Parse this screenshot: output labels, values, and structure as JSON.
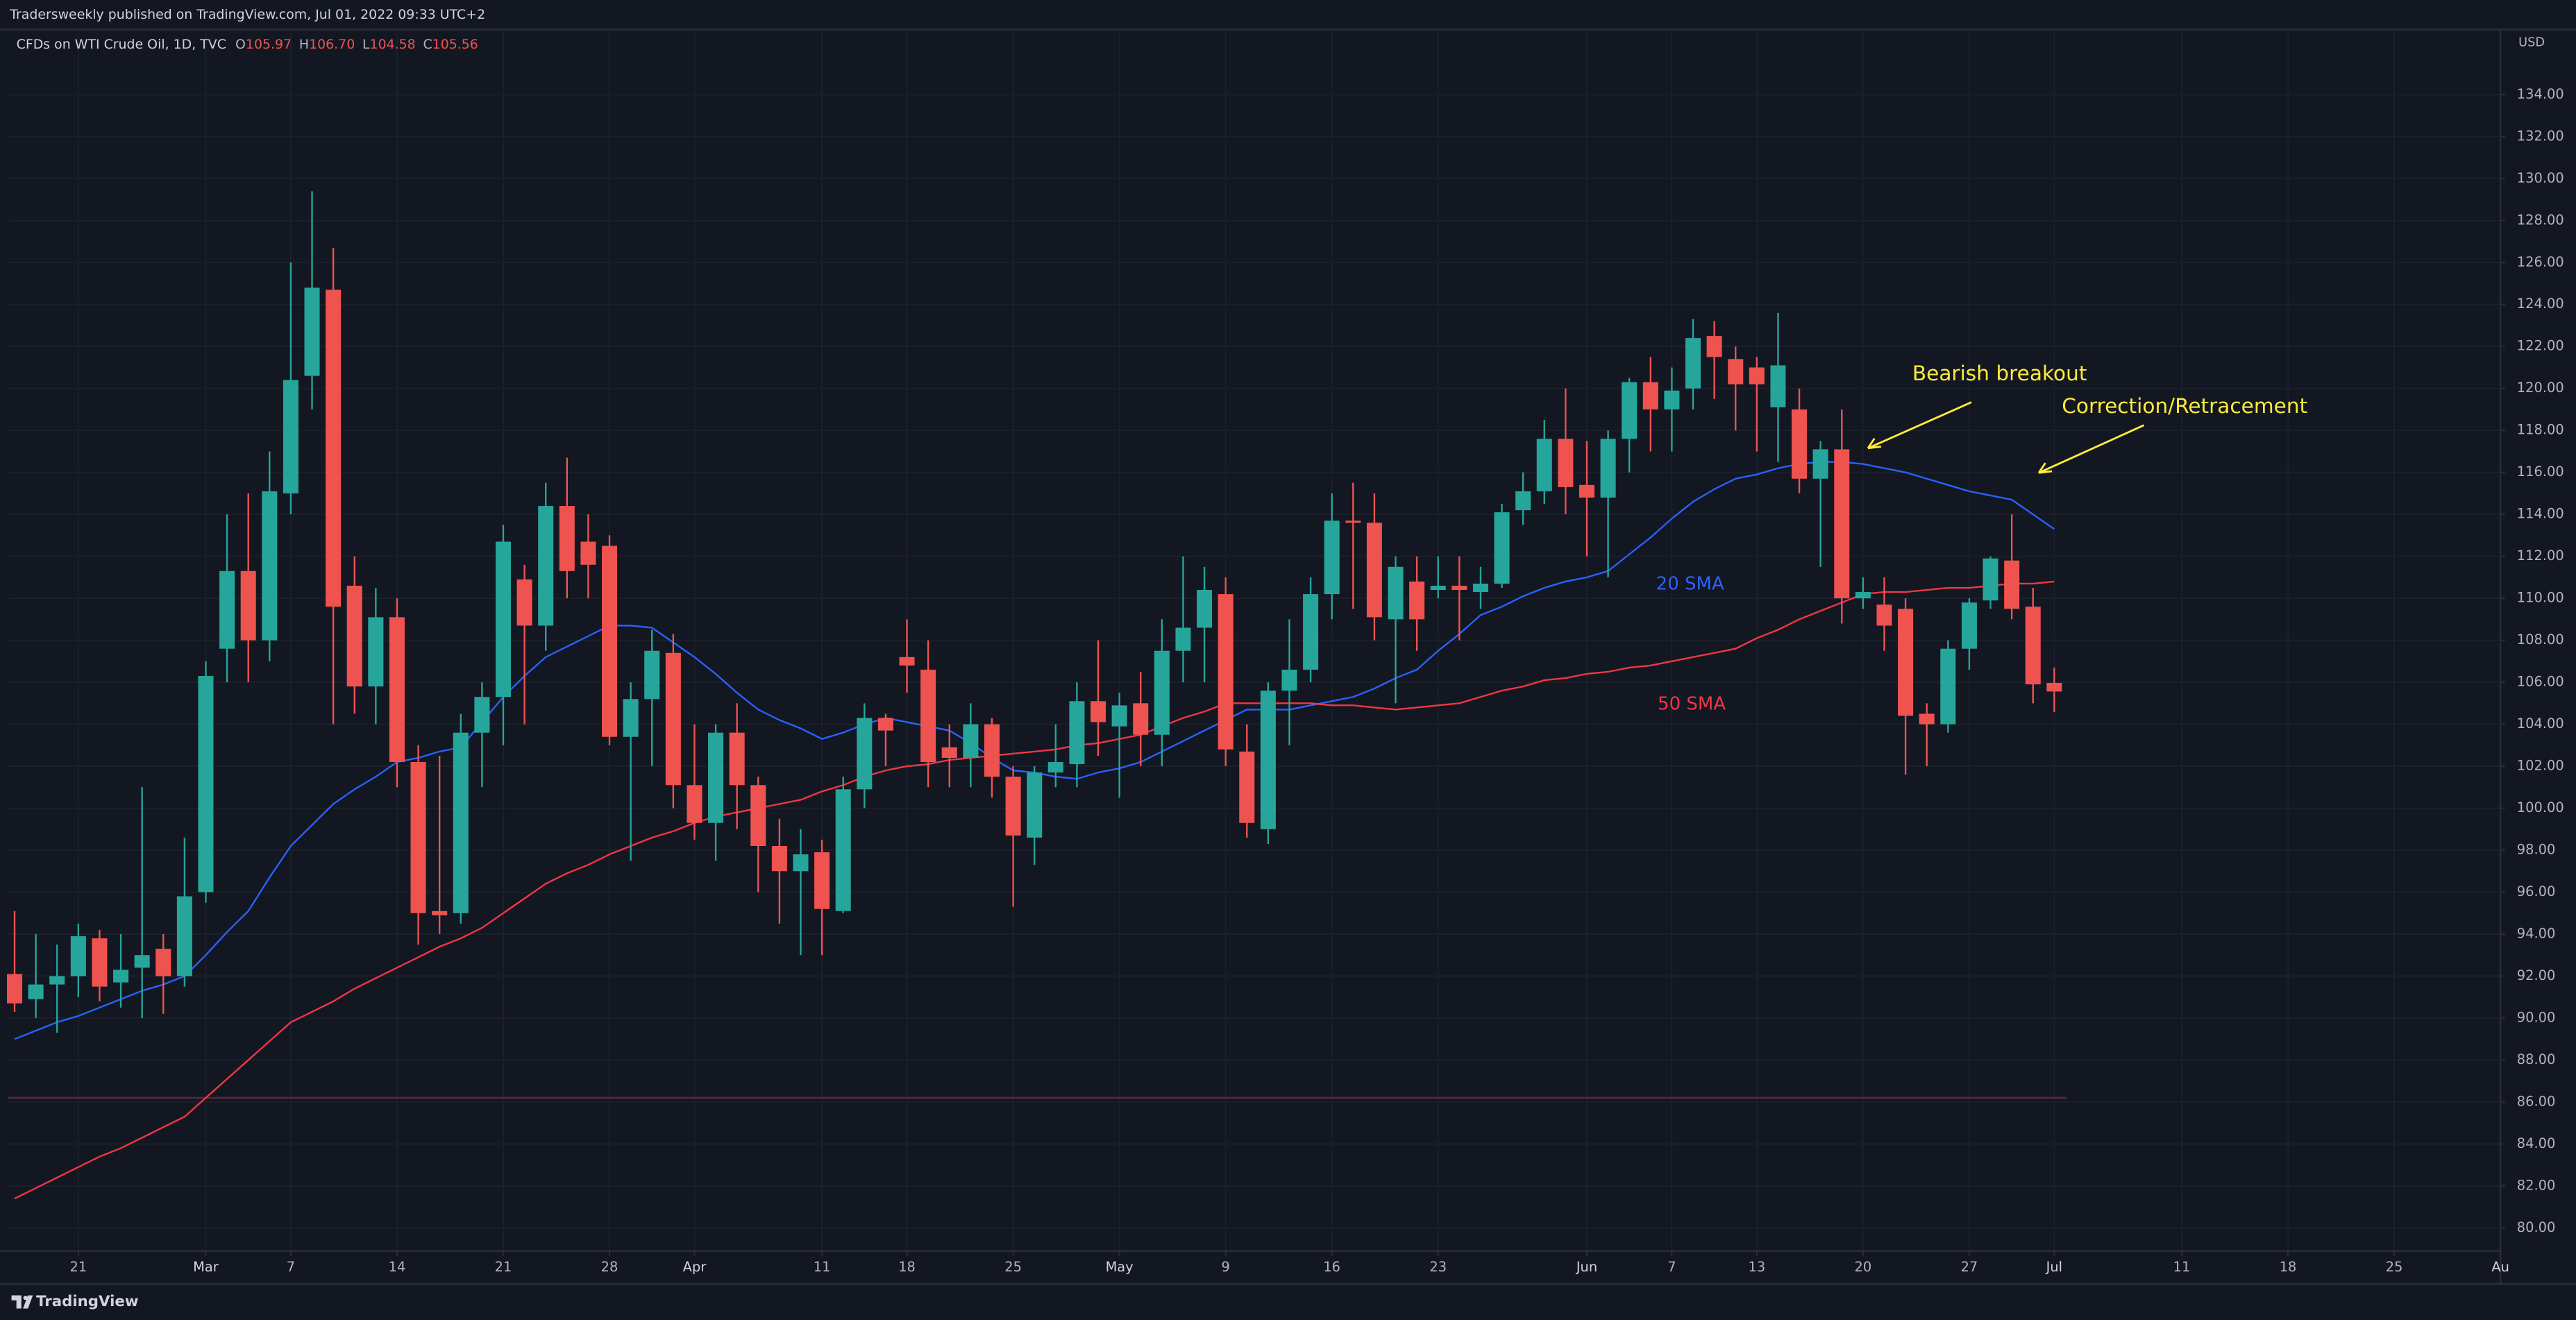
{
  "header": {
    "published": "Tradersweekly published on TradingView.com, Jul 01, 2022 09:33 UTC+2"
  },
  "footer": {
    "brand": "TradingView"
  },
  "chart_data": {
    "type": "candlestick",
    "symbol": "CFDs on WTI Crude Oil, 1D, TVC",
    "currency": "USD",
    "legend": {
      "fields": [
        "O",
        "H",
        "L",
        "C"
      ],
      "value_labels": [
        "105.97",
        "106.70",
        "104.58",
        "105.56"
      ]
    },
    "background": "#131722",
    "grid": true,
    "grid_color": "#1c202b",
    "xlim": [
      -0.3,
      117
    ],
    "ylim": [
      78.9,
      137.1
    ],
    "xticks": [
      {
        "value": 3,
        "label": "21"
      },
      {
        "value": 9,
        "label": "Mar"
      },
      {
        "value": 13,
        "label": "7"
      },
      {
        "value": 18,
        "label": "14"
      },
      {
        "value": 23,
        "label": "21"
      },
      {
        "value": 28,
        "label": "28"
      },
      {
        "value": 32,
        "label": "Apr"
      },
      {
        "value": 38,
        "label": "11"
      },
      {
        "value": 42,
        "label": "18"
      },
      {
        "value": 47,
        "label": "25"
      },
      {
        "value": 52,
        "label": "May"
      },
      {
        "value": 57,
        "label": "9"
      },
      {
        "value": 62,
        "label": "16"
      },
      {
        "value": 67,
        "label": "23"
      },
      {
        "value": 74,
        "label": "Jun"
      },
      {
        "value": 78,
        "label": "7"
      },
      {
        "value": 82,
        "label": "13"
      },
      {
        "value": 87,
        "label": "20"
      },
      {
        "value": 92,
        "label": "27"
      },
      {
        "value": 96,
        "label": "Jul"
      },
      {
        "value": 102,
        "label": "11"
      },
      {
        "value": 107,
        "label": "18"
      },
      {
        "value": 112,
        "label": "25"
      },
      {
        "value": 117,
        "label": "Au"
      }
    ],
    "yticks": [
      {
        "value": 80,
        "label": "80.00"
      },
      {
        "value": 82,
        "label": "82.00"
      },
      {
        "value": 84,
        "label": "84.00"
      },
      {
        "value": 86,
        "label": "86.00"
      },
      {
        "value": 88,
        "label": "88.00"
      },
      {
        "value": 90,
        "label": "90.00"
      },
      {
        "value": 92,
        "label": "92.00"
      },
      {
        "value": 94,
        "label": "94.00"
      },
      {
        "value": 96,
        "label": "96.00"
      },
      {
        "value": 98,
        "label": "98.00"
      },
      {
        "value": 100,
        "label": "100.00"
      },
      {
        "value": 102,
        "label": "102.00"
      },
      {
        "value": 104,
        "label": "104.00"
      },
      {
        "value": 106,
        "label": "106.00"
      },
      {
        "value": 108,
        "label": "108.00"
      },
      {
        "value": 110,
        "label": "110.00"
      },
      {
        "value": 112,
        "label": "112.00"
      },
      {
        "value": 114,
        "label": "114.00"
      },
      {
        "value": 116,
        "label": "116.00"
      },
      {
        "value": 118,
        "label": "118.00"
      },
      {
        "value": 120,
        "label": "120.00"
      },
      {
        "value": 122,
        "label": "122.00"
      },
      {
        "value": 124,
        "label": "124.00"
      },
      {
        "value": 126,
        "label": "126.00"
      },
      {
        "value": 128,
        "label": "128.00"
      },
      {
        "value": 130,
        "label": "130.00"
      },
      {
        "value": 132,
        "label": "132.00"
      },
      {
        "value": 134,
        "label": "134.00"
      }
    ],
    "hline": {
      "value": 86.2,
      "color": "#5e2a36"
    },
    "annotations": [
      {
        "text": "Bearish breakout",
        "color": "#ffeb3b"
      },
      {
        "text": "Correction/Retracement",
        "color": "#ffeb3b"
      }
    ],
    "series": [
      {
        "type": "candlestick",
        "up_color": "#26a69a",
        "down_color": "#ef5350",
        "open": [
          92.1,
          90.9,
          91.6,
          92.0,
          93.8,
          91.7,
          92.4,
          93.3,
          92.0,
          96.0,
          107.6,
          111.3,
          108.0,
          115.0,
          120.6,
          124.7,
          110.6,
          105.8,
          109.1,
          102.2,
          95.1,
          95.0,
          103.6,
          105.3,
          110.9,
          108.7,
          114.4,
          112.7,
          112.5,
          103.4,
          105.2,
          107.4,
          101.1,
          99.3,
          103.6,
          101.1,
          98.2,
          97.0,
          97.9,
          95.1,
          100.9,
          104.3,
          107.2,
          106.6,
          102.9,
          102.4,
          104.0,
          101.5,
          98.6,
          101.7,
          102.1,
          105.1,
          103.9,
          105.0,
          103.5,
          107.5,
          108.6,
          110.2,
          102.7,
          99.0,
          105.6,
          106.6,
          110.2,
          113.7,
          113.6,
          109.0,
          110.8,
          110.4,
          110.6,
          110.3,
          110.7,
          114.2,
          115.1,
          117.6,
          115.4,
          114.8,
          117.6,
          120.3,
          119.0,
          120.0,
          122.5,
          121.4,
          121.0,
          119.1,
          119.0,
          115.7,
          117.1,
          110.0,
          109.7,
          109.5,
          104.5,
          104.0,
          107.6,
          109.9,
          111.8,
          109.6,
          105.97
        ],
        "high": [
          95.1,
          94.0,
          93.5,
          94.5,
          94.2,
          94.0,
          101.0,
          94.0,
          98.6,
          107.0,
          114.0,
          115.0,
          117.0,
          126.0,
          129.4,
          126.7,
          112.0,
          110.5,
          110.0,
          103.0,
          102.5,
          104.5,
          106.0,
          113.5,
          111.6,
          115.5,
          116.7,
          114.0,
          113.0,
          106.0,
          108.5,
          108.3,
          104.0,
          104.0,
          105.0,
          101.5,
          99.5,
          99.0,
          98.5,
          101.5,
          105.0,
          104.5,
          109.0,
          108.0,
          104.0,
          105.0,
          104.3,
          102.0,
          102.0,
          104.0,
          106.0,
          108.0,
          105.5,
          106.5,
          109.0,
          112.0,
          111.5,
          111.0,
          104.0,
          106.0,
          109.0,
          111.0,
          115.0,
          115.5,
          115.0,
          112.0,
          112.0,
          112.0,
          112.0,
          111.5,
          114.5,
          116.0,
          118.5,
          120.0,
          117.5,
          118.0,
          120.5,
          121.5,
          121.0,
          123.3,
          123.2,
          122.0,
          121.5,
          123.6,
          120.0,
          117.5,
          119.0,
          111.0,
          111.0,
          110.0,
          105.0,
          108.0,
          110.0,
          112.0,
          114.0,
          110.5,
          106.7
        ],
        "low": [
          90.3,
          90.0,
          89.3,
          91.0,
          90.8,
          90.5,
          90.0,
          90.2,
          91.5,
          95.5,
          106.0,
          106.0,
          107.0,
          114.0,
          119.0,
          104.0,
          104.5,
          104.0,
          101.0,
          93.5,
          94.0,
          94.5,
          101.0,
          103.0,
          104.0,
          107.5,
          110.0,
          110.0,
          103.0,
          97.5,
          102.0,
          100.0,
          98.5,
          97.5,
          99.0,
          96.0,
          94.5,
          93.0,
          93.0,
          95.0,
          100.0,
          102.0,
          105.5,
          101.0,
          101.0,
          101.0,
          100.5,
          95.3,
          97.3,
          101.0,
          101.0,
          102.5,
          100.5,
          102.0,
          102.0,
          106.0,
          106.0,
          102.0,
          98.6,
          98.3,
          103.0,
          106.0,
          109.0,
          109.5,
          108.0,
          105.0,
          107.5,
          110.0,
          108.0,
          109.5,
          110.5,
          113.5,
          114.5,
          114.0,
          112.0,
          111.0,
          116.0,
          117.0,
          117.0,
          119.0,
          119.5,
          118.0,
          117.0,
          116.5,
          115.0,
          111.5,
          108.8,
          109.5,
          107.5,
          101.6,
          102.0,
          103.6,
          106.6,
          109.5,
          109.0,
          105.0,
          104.58
        ],
        "close": [
          90.7,
          91.6,
          92.0,
          93.9,
          91.5,
          92.3,
          93.0,
          92.0,
          95.8,
          106.3,
          111.3,
          108.0,
          115.1,
          120.4,
          124.8,
          109.6,
          105.8,
          109.1,
          102.2,
          95.0,
          94.9,
          103.6,
          105.3,
          112.7,
          108.7,
          114.4,
          111.3,
          111.6,
          103.4,
          105.2,
          107.5,
          101.1,
          99.3,
          103.6,
          101.1,
          98.2,
          97.0,
          97.8,
          95.2,
          100.9,
          104.3,
          103.7,
          106.8,
          102.2,
          102.4,
          104.0,
          101.5,
          98.7,
          101.7,
          102.2,
          105.1,
          104.1,
          104.9,
          103.5,
          107.5,
          108.6,
          110.4,
          102.8,
          99.3,
          105.6,
          106.6,
          110.2,
          113.7,
          113.6,
          109.1,
          111.5,
          109.0,
          110.6,
          110.4,
          110.7,
          114.1,
          115.1,
          117.6,
          115.3,
          114.8,
          117.6,
          120.3,
          119.0,
          119.9,
          122.4,
          121.5,
          120.2,
          120.2,
          121.1,
          115.7,
          117.1,
          110.0,
          110.3,
          108.7,
          104.4,
          104.0,
          107.6,
          109.8,
          111.9,
          109.5,
          105.9,
          105.56
        ]
      },
      {
        "type": "line",
        "name": "20 SMA",
        "color": "#2962ff",
        "values": [
          89.0,
          89.4,
          89.8,
          90.1,
          90.5,
          90.9,
          91.3,
          91.6,
          92.0,
          93.0,
          94.1,
          95.1,
          96.7,
          98.2,
          99.2,
          100.2,
          100.9,
          101.5,
          102.2,
          102.4,
          102.7,
          102.9,
          104.1,
          105.3,
          106.3,
          107.2,
          107.7,
          108.2,
          108.7,
          108.7,
          108.6,
          107.9,
          107.2,
          106.4,
          105.5,
          104.7,
          104.2,
          103.8,
          103.3,
          103.6,
          104.0,
          104.3,
          104.1,
          103.9,
          103.7,
          103.1,
          102.4,
          101.8,
          101.7,
          101.5,
          101.4,
          101.7,
          101.9,
          102.2,
          102.7,
          103.2,
          103.7,
          104.2,
          104.7,
          104.7,
          104.7,
          104.9,
          105.1,
          105.3,
          105.7,
          106.2,
          106.6,
          107.5,
          108.3,
          109.2,
          109.6,
          110.1,
          110.5,
          110.8,
          111.0,
          111.3,
          112.1,
          112.9,
          113.8,
          114.6,
          115.2,
          115.7,
          115.9,
          116.2,
          116.4,
          116.5,
          116.5,
          116.4,
          116.2,
          116.0,
          115.7,
          115.4,
          115.1,
          114.9,
          114.7,
          114.0,
          113.3
        ]
      },
      {
        "type": "line",
        "name": "50 SMA",
        "color": "#f23645",
        "values": [
          81.4,
          81.9,
          82.4,
          82.9,
          83.4,
          83.8,
          84.3,
          84.8,
          85.3,
          86.2,
          87.1,
          88.0,
          88.9,
          89.8,
          90.3,
          90.8,
          91.4,
          91.9,
          92.4,
          92.9,
          93.4,
          93.8,
          94.3,
          95.0,
          95.7,
          96.4,
          96.9,
          97.3,
          97.8,
          98.2,
          98.6,
          98.9,
          99.3,
          99.6,
          99.8,
          100.0,
          100.2,
          100.4,
          100.8,
          101.1,
          101.5,
          101.8,
          102.0,
          102.1,
          102.3,
          102.4,
          102.5,
          102.6,
          102.7,
          102.8,
          103.0,
          103.1,
          103.3,
          103.5,
          103.9,
          104.3,
          104.6,
          105.0,
          105.0,
          105.0,
          105.0,
          105.0,
          104.9,
          104.9,
          104.8,
          104.7,
          104.8,
          104.9,
          105.0,
          105.3,
          105.6,
          105.8,
          106.1,
          106.2,
          106.4,
          106.5,
          106.7,
          106.8,
          107.0,
          107.2,
          107.4,
          107.6,
          108.1,
          108.5,
          109.0,
          109.4,
          109.8,
          110.2,
          110.3,
          110.3,
          110.4,
          110.5,
          110.5,
          110.6,
          110.7,
          110.7,
          110.8
        ]
      }
    ]
  }
}
